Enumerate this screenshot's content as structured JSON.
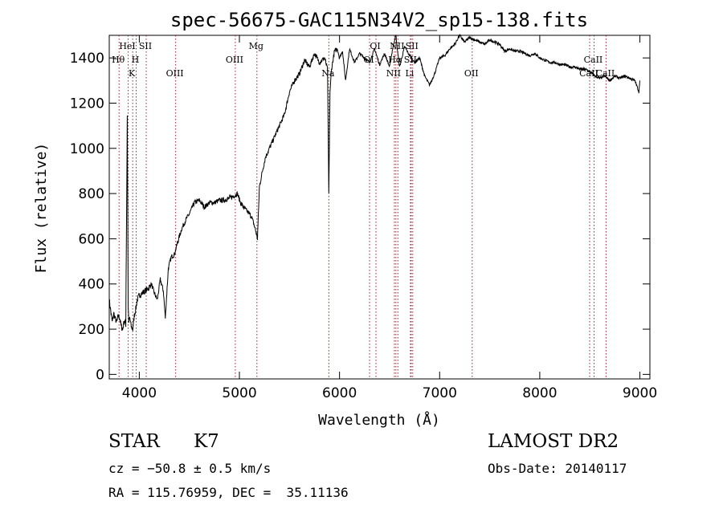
{
  "chart_data": {
    "type": "line",
    "title": "spec-56675-GAC115N34V2_sp15-138.fits",
    "xlabel": "Wavelength (Å)",
    "ylabel": "Flux (relative)",
    "xlim": [
      3700,
      9100
    ],
    "ylim": [
      -20,
      1500
    ],
    "xticks": [
      4000,
      5000,
      6000,
      7000,
      8000,
      9000
    ],
    "yticks": [
      0,
      200,
      400,
      600,
      800,
      1000,
      1200,
      1400
    ],
    "line_color": "#000000",
    "marker_color": "#a0202a",
    "series": [
      {
        "x": [
          3700,
          3715,
          3730,
          3745,
          3760,
          3775,
          3790,
          3805,
          3820,
          3835,
          3850,
          3865,
          3880,
          3889,
          3895,
          3905,
          3920,
          3935,
          3950,
          3965,
          3980,
          4000,
          4030,
          4060,
          4090,
          4120,
          4150,
          4180,
          4210,
          4240,
          4260,
          4290,
          4320,
          4350,
          4380,
          4420,
          4460,
          4500,
          4550,
          4600,
          4650,
          4700,
          4750,
          4800,
          4850,
          4900,
          4950,
          4980,
          5010,
          5040,
          5080,
          5120,
          5160,
          5180,
          5200,
          5230,
          5260,
          5300,
          5350,
          5400,
          5450,
          5500,
          5550,
          5600,
          5650,
          5700,
          5750,
          5800,
          5850,
          5880,
          5893,
          5905,
          5920,
          5950,
          5980,
          6000,
          6030,
          6060,
          6100,
          6150,
          6200,
          6250,
          6300,
          6350,
          6400,
          6450,
          6500,
          6530,
          6550,
          6563,
          6580,
          6600,
          6650,
          6700,
          6750,
          6800,
          6850,
          6900,
          6950,
          7000,
          7050,
          7100,
          7150,
          7200,
          7250,
          7300,
          7350,
          7400,
          7450,
          7500,
          7550,
          7600,
          7650,
          7700,
          7750,
          7800,
          7850,
          7900,
          7950,
          8000,
          8050,
          8100,
          8150,
          8200,
          8250,
          8300,
          8350,
          8400,
          8450,
          8500,
          8550,
          8600,
          8650,
          8700,
          8750,
          8800,
          8850,
          8900,
          8950,
          8990,
          9000
        ],
        "y": [
          330,
          280,
          230,
          270,
          245,
          230,
          260,
          250,
          210,
          200,
          240,
          220,
          1150,
          300,
          230,
          250,
          210,
          200,
          260,
          290,
          330,
          350,
          360,
          370,
          380,
          400,
          360,
          330,
          420,
          370,
          250,
          470,
          520,
          530,
          580,
          640,
          680,
          710,
          760,
          770,
          740,
          760,
          760,
          770,
          770,
          780,
          790,
          800,
          760,
          740,
          720,
          700,
          640,
          600,
          830,
          900,
          960,
          1000,
          1050,
          1100,
          1150,
          1250,
          1300,
          1330,
          1390,
          1360,
          1420,
          1380,
          1400,
          1350,
          800,
          1250,
          1350,
          1430,
          1440,
          1400,
          1430,
          1300,
          1440,
          1380,
          1420,
          1400,
          1380,
          1440,
          1370,
          1420,
          1360,
          1440,
          1480,
          1500,
          1430,
          1360,
          1450,
          1410,
          1380,
          1400,
          1320,
          1280,
          1330,
          1400,
          1410,
          1440,
          1460,
          1500,
          1470,
          1490,
          1480,
          1470,
          1460,
          1480,
          1470,
          1460,
          1430,
          1440,
          1430,
          1430,
          1420,
          1410,
          1420,
          1400,
          1390,
          1380,
          1380,
          1370,
          1370,
          1360,
          1360,
          1350,
          1350,
          1340,
          1320,
          1310,
          1320,
          1300,
          1320,
          1310,
          1320,
          1310,
          1300,
          1250,
          1300
        ]
      }
    ],
    "lines": [
      {
        "label": "Hθ",
        "x": 3798,
        "row": 2
      },
      {
        "label": "HeI",
        "x": 3889,
        "row": 1
      },
      {
        "label": "K",
        "x": 3934,
        "row": 3
      },
      {
        "label": "H",
        "x": 3969,
        "row": 2
      },
      {
        "label": "SII",
        "x": 4069,
        "row": 1
      },
      {
        "label": "OIII",
        "x": 4363,
        "row": 3
      },
      {
        "label": "OIII",
        "x": 4959,
        "row": 2
      },
      {
        "label": "Mg",
        "x": 5175,
        "row": 1
      },
      {
        "label": "Na",
        "x": 5893,
        "row": 3
      },
      {
        "label": "OI",
        "x": 6300,
        "row": 2
      },
      {
        "label": "OI",
        "x": 6364,
        "row": 1
      },
      {
        "label": "NII",
        "x": 6548,
        "row": 3
      },
      {
        "label": "Hα",
        "x": 6563,
        "row": 2
      },
      {
        "label": "NII",
        "x": 6583,
        "row": 1
      },
      {
        "label": "SII",
        "x": 6716,
        "row": 2
      },
      {
        "label": "SII",
        "x": 6731,
        "row": 1
      },
      {
        "label": "Li",
        "x": 6708,
        "row": 3
      },
      {
        "label": "OII",
        "x": 7325,
        "row": 3
      },
      {
        "label": "CaII",
        "x": 8498,
        "row": 3
      },
      {
        "label": "CaII",
        "x": 8542,
        "row": 2
      },
      {
        "label": "CaII",
        "x": 8662,
        "row": 3
      }
    ]
  },
  "info": {
    "class_label": "STAR",
    "subclass_label": "K7",
    "survey_label": "LAMOST DR2",
    "redshift_text": "cz = −50.8 ± 0.5 km/s",
    "obs_date_text": "Obs-Date: 20140117",
    "coords_text": "RA = 115.76959, DEC =  35.11136"
  }
}
